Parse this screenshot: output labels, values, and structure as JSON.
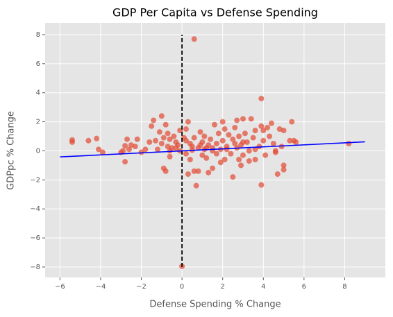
{
  "chart_data": {
    "type": "scatter",
    "title": "GDP Per Capita vs Defense Spending",
    "x_label": "Defense Spending % Change",
    "y_label": "GDPpc % Change",
    "color": "#E24A33",
    "grid": true,
    "xlim": [
      -6.73,
      10.0
    ],
    "ylim": [
      -8.72,
      8.81
    ],
    "xticks": [
      {
        "value": -6,
        "label": "−6"
      },
      {
        "value": -4,
        "label": "−4"
      },
      {
        "value": -2,
        "label": "−2"
      },
      0,
      2,
      4,
      6,
      8
    ],
    "yticks": [
      {
        "value": -8,
        "label": "−8"
      },
      {
        "value": -6,
        "label": "−6"
      },
      {
        "value": -4,
        "label": "−4"
      },
      {
        "value": -2,
        "label": "−2"
      },
      0,
      2,
      4,
      6,
      8
    ],
    "x": [
      -5.4,
      -5.4,
      -4.6,
      -4.2,
      -4.1,
      -3.9,
      -3.0,
      -2.9,
      -2.8,
      -2.7,
      -2.6,
      -2.8,
      -2.5,
      -2.3,
      -2.2,
      -2.0,
      -1.8,
      -1.6,
      -1.5,
      -1.4,
      -1.3,
      -1.2,
      -1.1,
      -1.0,
      -1.0,
      -0.9,
      -0.9,
      -0.8,
      -0.8,
      -0.7,
      -0.7,
      -0.6,
      -0.6,
      -0.5,
      -0.4,
      -0.3,
      -0.2,
      -0.1,
      -0.1,
      0.0,
      0.1,
      0.2,
      0.2,
      0.3,
      0.3,
      0.4,
      0.4,
      0.5,
      0.6,
      0.6,
      0.6,
      0.7,
      0.8,
      0.8,
      0.9,
      1.0,
      1.0,
      1.1,
      1.2,
      1.3,
      1.3,
      1.4,
      1.5,
      1.5,
      1.6,
      1.7,
      1.8,
      1.9,
      1.9,
      2.0,
      2.0,
      2.1,
      2.1,
      2.2,
      2.3,
      2.4,
      2.5,
      2.5,
      2.6,
      2.7,
      2.7,
      2.8,
      2.8,
      2.9,
      2.9,
      3.0,
      3.0,
      3.1,
      3.2,
      3.3,
      3.3,
      3.4,
      3.5,
      3.6,
      3.6,
      3.8,
      3.9,
      3.9,
      3.9,
      4.0,
      4.0,
      4.1,
      4.2,
      4.3,
      4.4,
      4.5,
      4.6,
      4.7,
      4.8,
      4.9,
      5.0,
      5.0,
      5.0,
      5.3,
      5.4,
      5.5,
      5.6,
      8.2,
      4.6,
      1.5,
      0.5,
      1.2,
      2.2,
      3.6,
      0.9,
      -0.3,
      1.7,
      2.6,
      3.0,
      -0.6,
      0.2,
      1.1
    ],
    "values": [
      0.75,
      0.6,
      0.7,
      0.85,
      0.1,
      -0.1,
      -0.1,
      0.0,
      0.35,
      0.8,
      0.1,
      -0.75,
      0.4,
      0.3,
      0.8,
      -0.1,
      0.1,
      0.6,
      1.7,
      2.1,
      0.7,
      0.1,
      1.3,
      2.4,
      0.5,
      0.9,
      -1.2,
      -1.4,
      1.8,
      0.3,
      1.2,
      -0.4,
      0.8,
      0.2,
      1.0,
      0.6,
      0.4,
      1.4,
      0.0,
      -7.95,
      0.9,
      1.5,
      -0.2,
      -1.6,
      2.0,
      0.5,
      -0.6,
      0.3,
      7.7,
      0.9,
      -1.4,
      -2.4,
      -1.4,
      0.2,
      1.3,
      0.6,
      -0.3,
      1.0,
      -0.5,
      0.4,
      -1.5,
      0.8,
      -1.2,
      0.2,
      1.8,
      0.5,
      1.2,
      -0.8,
      0.1,
      2.0,
      0.7,
      -0.6,
      1.5,
      0.3,
      1.1,
      -0.2,
      -1.8,
      0.8,
      1.6,
      0.2,
      2.1,
      -0.6,
      1.0,
      -1.0,
      0.4,
      2.2,
      -0.3,
      1.2,
      0.6,
      0.0,
      -0.7,
      2.2,
      0.9,
      1.4,
      -0.6,
      0.3,
      -2.35,
      3.6,
      1.7,
      0.7,
      1.4,
      -0.3,
      1.6,
      1.0,
      1.9,
      0.5,
      -0.1,
      -1.6,
      1.5,
      0.3,
      -1.0,
      -1.3,
      1.4,
      0.7,
      2.0,
      0.7,
      0.6,
      0.5,
      0.0,
      0.0,
      0.05,
      0.2,
      0.1,
      0.1,
      0.4,
      0.2,
      -0.2,
      0.5,
      0.6,
      0.0,
      0.7,
      0.1
    ],
    "trend_line": {
      "x": [
        -6,
        9
      ],
      "y": [
        -0.42,
        0.62
      ],
      "color": "#0000ff"
    },
    "reference_line": {
      "x": 0,
      "y": [
        -8,
        8
      ],
      "color": "#000000"
    }
  }
}
